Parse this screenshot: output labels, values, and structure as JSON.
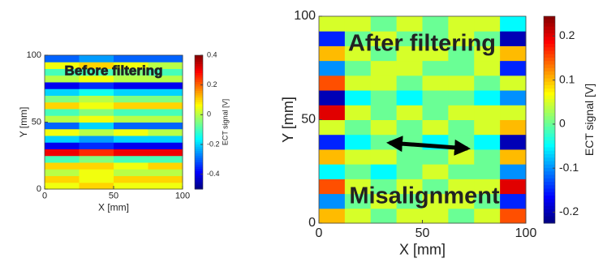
{
  "chart_data": [
    {
      "type": "heatmap",
      "annotation": "Before filtering",
      "x_label": "X [mm]",
      "y_label": "Y [mm]",
      "colorbar_label": "ECT signal [V]",
      "xlim": [
        0,
        100
      ],
      "ylim": [
        0,
        100
      ],
      "xticks": [
        0,
        50,
        100
      ],
      "yticks": [
        0,
        50,
        100
      ],
      "clim": [
        -0.5,
        0.4
      ],
      "cticks": [
        -0.4,
        -0.2,
        0,
        0.2,
        0.4
      ],
      "colormap": "jet",
      "z": [
        [
          0.05,
          0.1,
          0.05,
          0.05
        ],
        [
          0.1,
          0.05,
          0.1,
          0.1
        ],
        [
          0,
          0.05,
          0,
          0
        ],
        [
          0.1,
          0.1,
          0.05,
          0.1
        ],
        [
          -0.1,
          -0.05,
          -0.1,
          -0.1
        ],
        [
          0.3,
          0.25,
          0.3,
          0.3
        ],
        [
          -0.4,
          -0.35,
          -0.4,
          -0.4
        ],
        [
          -0.2,
          -0.25,
          -0.2,
          -0.2
        ],
        [
          0.05,
          0,
          0.05,
          0
        ],
        [
          -0.3,
          -0.2,
          -0.3,
          -0.3
        ],
        [
          0,
          0.05,
          0,
          0
        ],
        [
          -0.1,
          -0.05,
          -0.1,
          -0.1
        ],
        [
          0.1,
          0.05,
          0.1,
          0.1
        ],
        [
          -0.05,
          0,
          -0.05,
          -0.05
        ],
        [
          -0.2,
          -0.15,
          -0.2,
          -0.2
        ],
        [
          -0.4,
          -0.35,
          -0.4,
          -0.4
        ],
        [
          0,
          0.05,
          0,
          0
        ],
        [
          -0.1,
          -0.1,
          -0.05,
          -0.1
        ],
        [
          0.05,
          0.1,
          0.05,
          0
        ],
        [
          -0.3,
          -0.25,
          -0.3,
          -0.3
        ]
      ]
    },
    {
      "type": "heatmap",
      "annotations": [
        "After filtering",
        "Misalignment"
      ],
      "x_label": "X [mm]",
      "y_label": "Y [mm]",
      "colorbar_label": "ECT signal [V]",
      "xlim": [
        0,
        100
      ],
      "ylim": [
        0,
        100
      ],
      "xticks": [
        0,
        50,
        100
      ],
      "yticks": [
        0,
        50,
        100
      ],
      "clim": [
        -0.225,
        0.245
      ],
      "cticks": [
        -0.2,
        -0.1,
        0,
        0.1,
        0.2
      ],
      "colormap": "jet",
      "z": [
        [
          0.1,
          0.05,
          0,
          0.05,
          0.05,
          0,
          0.05,
          0.15
        ],
        [
          -0.1,
          0,
          0.05,
          0,
          0.05,
          0.05,
          0,
          -0.15
        ],
        [
          0.15,
          0.05,
          0,
          0.05,
          0,
          0.05,
          0.05,
          0.2
        ],
        [
          -0.05,
          0,
          -0.05,
          0,
          0.05,
          0,
          0,
          -0.1
        ],
        [
          0.1,
          0.05,
          0.05,
          0,
          0,
          0.05,
          0,
          0.1
        ],
        [
          -0.15,
          -0.05,
          0,
          0,
          -0.05,
          0,
          -0.05,
          -0.2
        ],
        [
          0.05,
          0,
          0.05,
          0,
          0.05,
          0,
          0.05,
          0.1
        ],
        [
          0.2,
          0.05,
          0,
          0.05,
          0,
          0.05,
          0.05,
          0.05
        ],
        [
          -0.2,
          -0.05,
          0,
          -0.05,
          0,
          0,
          -0.05,
          -0.1
        ],
        [
          0.15,
          0.05,
          0.05,
          0,
          0.05,
          0.05,
          0,
          0.05
        ],
        [
          -0.1,
          0,
          0.05,
          0.05,
          0,
          0,
          0.05,
          -0.15
        ],
        [
          0.1,
          0.05,
          0,
          0.05,
          0.05,
          0,
          0.05,
          0.1
        ],
        [
          -0.15,
          0,
          0.05,
          0,
          0,
          0.05,
          0,
          -0.2
        ],
        [
          0.05,
          0.05,
          0,
          0.05,
          0,
          0.05,
          0.05,
          -0.05
        ]
      ]
    }
  ]
}
